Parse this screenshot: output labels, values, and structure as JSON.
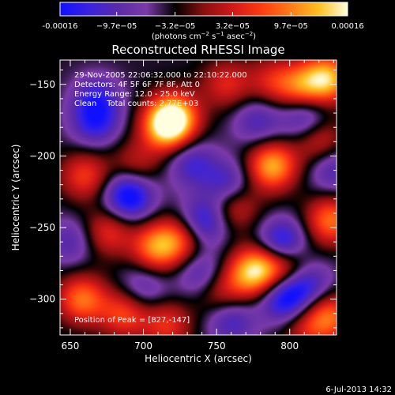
{
  "colorbar": {
    "tick_labels": [
      "-0.00016",
      "−9.7e−05",
      "−3.2e−05",
      "3.2e−05",
      "9.7e−05",
      "0.00016"
    ],
    "tick_values": [
      -0.00016,
      -9.7e-05,
      -3.2e-05,
      3.2e-05,
      9.7e-05,
      0.00016
    ],
    "range": [
      -0.00016,
      0.00016
    ],
    "unit_pre": "(photons cm",
    "unit_sup1": "−2",
    "unit_mid": " s",
    "unit_sup2": "−1",
    "unit_mid2": " asec",
    "unit_sup3": "−2",
    "unit_post": ")",
    "colors": [
      "#1010ff",
      "#3a22e0",
      "#5a2aa8",
      "#7a3aa8",
      "#000000",
      "#8a1010",
      "#d01818",
      "#ff3a10",
      "#ff7a18",
      "#ffc020",
      "#ffffe0"
    ]
  },
  "chart_data": {
    "type": "heatmap",
    "title": "Reconstructed RHESSI Image",
    "xlabel": "Heliocentric X (arcsec)",
    "ylabel": "Heliocentric Y (arcsec)",
    "xlim": [
      643,
      832
    ],
    "ylim": [
      -325,
      -133
    ],
    "x_ticks": [
      650,
      700,
      750,
      800
    ],
    "x_tick_labels": [
      "650",
      "700",
      "750",
      "800"
    ],
    "y_ticks": [
      -150,
      -200,
      -250,
      -300
    ],
    "y_tick_labels": [
      "−150",
      "−200",
      "−250",
      "−300"
    ],
    "peak": [
      827,
      -147
    ],
    "sources": [
      {
        "x": 716,
        "y": -180,
        "value": 1.0
      },
      {
        "x": 721,
        "y": -172,
        "value": 0.9
      },
      {
        "x": 826,
        "y": -146,
        "value": 1.0
      },
      {
        "x": 808,
        "y": -152,
        "value": 0.7
      },
      {
        "x": 788,
        "y": -207,
        "value": 1.0
      },
      {
        "x": 709,
        "y": -264,
        "value": 0.85
      },
      {
        "x": 726,
        "y": -258,
        "value": 0.6
      },
      {
        "x": 660,
        "y": -214,
        "value": 0.6
      },
      {
        "x": 676,
        "y": -253,
        "value": 0.55
      },
      {
        "x": 658,
        "y": -300,
        "value": 0.8
      },
      {
        "x": 687,
        "y": -310,
        "value": 0.65
      },
      {
        "x": 716,
        "y": -318,
        "value": 0.55
      },
      {
        "x": 780,
        "y": -278,
        "value": 0.9
      },
      {
        "x": 770,
        "y": -285,
        "value": 0.5
      },
      {
        "x": 800,
        "y": -276,
        "value": 0.7
      },
      {
        "x": 827,
        "y": -312,
        "value": 0.75
      },
      {
        "x": 828,
        "y": -245,
        "value": 0.8
      },
      {
        "x": 762,
        "y": -235,
        "value": 0.55
      },
      {
        "x": 757,
        "y": -150,
        "value": 0.5
      },
      {
        "x": 788,
        "y": -148,
        "value": 0.45
      },
      {
        "x": 820,
        "y": -188,
        "value": 0.55
      },
      {
        "x": 751,
        "y": -295,
        "value": 0.45
      },
      {
        "x": 695,
        "y": -206,
        "value": 0.4
      },
      {
        "x": 810,
        "y": -320,
        "value": 0.4
      }
    ],
    "sinks": [
      {
        "x": 690,
        "y": -228,
        "value": -0.9
      },
      {
        "x": 741,
        "y": -246,
        "value": -0.7
      },
      {
        "x": 795,
        "y": -262,
        "value": -0.9
      },
      {
        "x": 797,
        "y": -300,
        "value": -0.8
      },
      {
        "x": 811,
        "y": -173,
        "value": -0.6
      },
      {
        "x": 812,
        "y": -288,
        "value": -0.6
      },
      {
        "x": 758,
        "y": -220,
        "value": -0.55
      },
      {
        "x": 733,
        "y": -205,
        "value": -0.5
      },
      {
        "x": 667,
        "y": -177,
        "value": -0.55
      },
      {
        "x": 668,
        "y": -160,
        "value": -0.5
      },
      {
        "x": 740,
        "y": -283,
        "value": -0.5
      },
      {
        "x": 700,
        "y": -292,
        "value": -0.4
      },
      {
        "x": 760,
        "y": -315,
        "value": -0.5
      },
      {
        "x": 778,
        "y": -176,
        "value": -0.45
      },
      {
        "x": 650,
        "y": -260,
        "value": -0.4
      },
      {
        "x": 830,
        "y": -210,
        "value": -0.45
      }
    ]
  },
  "plot_text": {
    "time_range": "29-Nov-2005 22:06:32.000 to 22:10:22.000",
    "detectors": "Detectors: 4F 5F 6F 7F 8F, Att 0",
    "energy": "Energy Range: 12.0 - 25.0 keV",
    "clean": "Clean    Total counts: 2.77E+03",
    "peak_label": "Position of Peak = [827,-147]"
  },
  "footer": {
    "date": "6-Jul-2013 14:32"
  }
}
